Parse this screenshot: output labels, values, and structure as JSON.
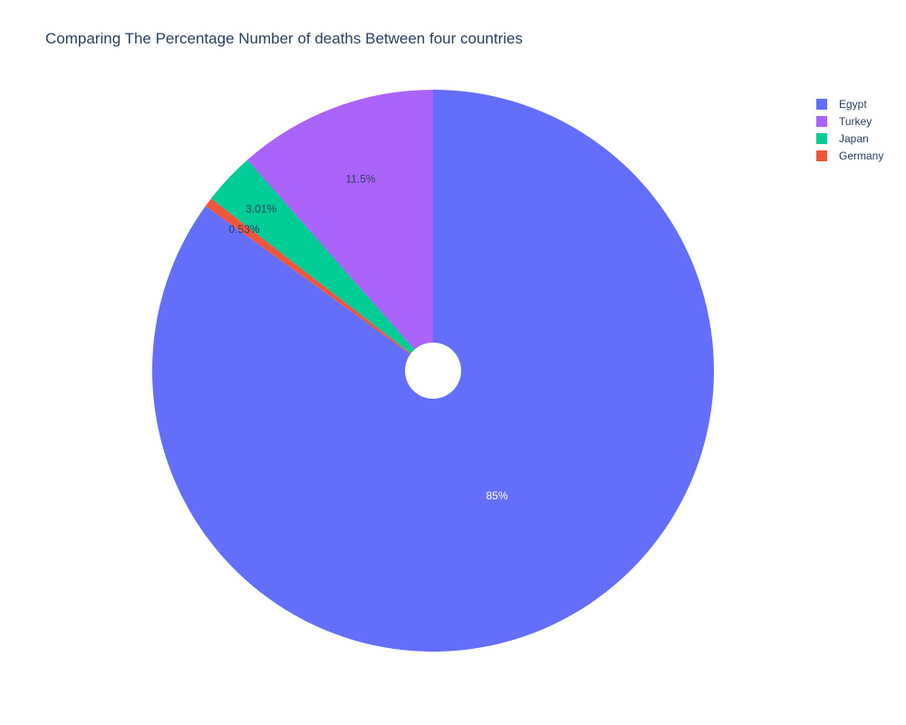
{
  "chart_data": {
    "type": "pie",
    "title": "Comparing The Percentage Number of deaths Between four countries",
    "hole": true,
    "direction": "clockwise",
    "slices": [
      {
        "label": "Egypt",
        "percent": 85,
        "percent_label": "85%",
        "color": "#636efa"
      },
      {
        "label": "Germany",
        "percent": 0.53,
        "percent_label": "0.53%",
        "color": "#ef553b"
      },
      {
        "label": "Japan",
        "percent": 3.01,
        "percent_label": "3.01%",
        "color": "#00cc96"
      },
      {
        "label": "Turkey",
        "percent": 11.5,
        "percent_label": "11.5%",
        "color": "#ab63fa"
      }
    ],
    "legend": {
      "placement": "top-right",
      "entries": [
        "Egypt",
        "Turkey",
        "Japan",
        "Germany"
      ]
    }
  }
}
